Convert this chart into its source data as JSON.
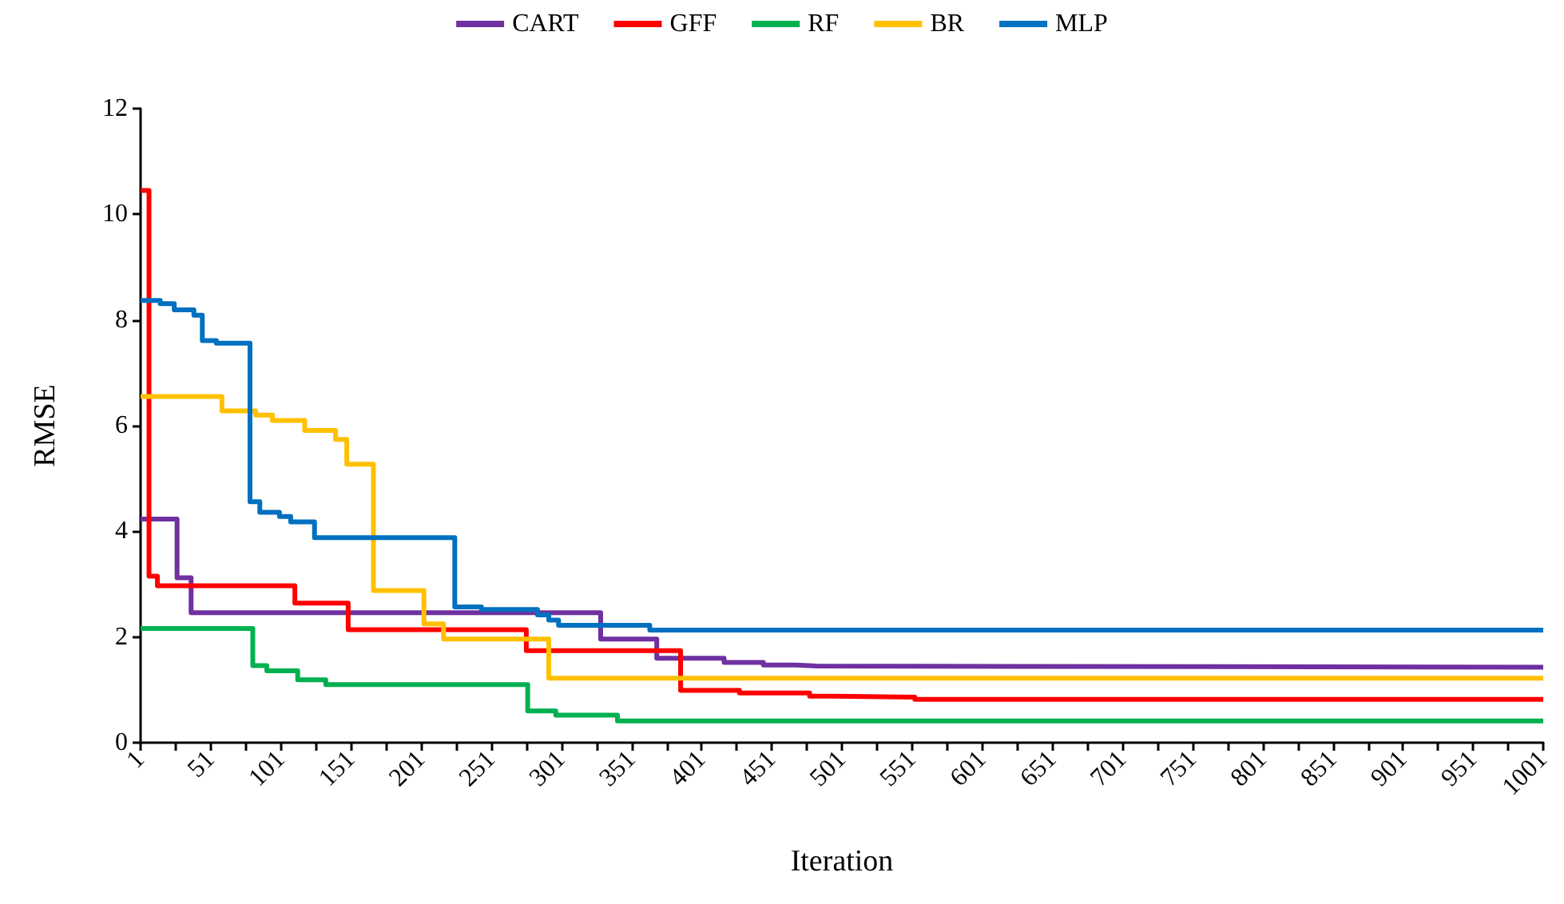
{
  "chart_data": {
    "type": "step",
    "xlabel": "Iteration",
    "ylabel": "RMSE",
    "xlim": [
      1,
      1001
    ],
    "ylim": [
      0,
      12
    ],
    "yticks": [
      0,
      2,
      4,
      6,
      8,
      10,
      12
    ],
    "xticks": [
      1,
      {
        "value": 26,
        "label": null
      },
      51,
      {
        "value": 76,
        "label": null
      },
      101,
      {
        "value": 126,
        "label": null
      },
      151,
      {
        "value": 176,
        "label": null
      },
      201,
      {
        "value": 226,
        "label": null
      },
      251,
      {
        "value": 276,
        "label": null
      },
      301,
      {
        "value": 326,
        "label": null
      },
      351,
      {
        "value": 376,
        "label": null
      },
      401,
      {
        "value": 426,
        "label": null
      },
      451,
      {
        "value": 476,
        "label": null
      },
      501,
      {
        "value": 526,
        "label": null
      },
      551,
      {
        "value": 576,
        "label": null
      },
      601,
      {
        "value": 626,
        "label": null
      },
      651,
      {
        "value": 676,
        "label": null
      },
      701,
      {
        "value": 726,
        "label": null
      },
      751,
      {
        "value": 776,
        "label": null
      },
      801,
      {
        "value": 826,
        "label": null
      },
      851,
      {
        "value": 876,
        "label": null
      },
      901,
      {
        "value": 926,
        "label": null
      },
      951,
      {
        "value": 976,
        "label": null
      },
      1001
    ],
    "grid": false,
    "legend": "top",
    "marker": "none",
    "line_style": "solid",
    "series": [
      {
        "name": "CART",
        "color": "#7030a0",
        "x": [
          1,
          27,
          37,
          329,
          369,
          417,
          445,
          468,
          483,
          1001
        ],
        "values": [
          4.23,
          3.12,
          2.46,
          1.96,
          1.6,
          1.52,
          1.47,
          1.45,
          1.43,
          1.43
        ]
      },
      {
        "name": "GFF",
        "color": "#ff0000",
        "x": [
          1,
          7,
          13,
          111,
          149,
          276,
          386,
          428,
          478,
          495,
          553,
          1001
        ],
        "values": [
          10.45,
          3.15,
          2.97,
          2.64,
          2.14,
          1.74,
          0.99,
          0.94,
          0.88,
          0.86,
          0.82,
          0.82
        ]
      },
      {
        "name": "RF",
        "color": "#00b050",
        "x": [
          1,
          81,
          91,
          113,
          133,
          277,
          297,
          341,
          1001
        ],
        "values": [
          2.16,
          1.46,
          1.36,
          1.19,
          1.1,
          0.6,
          0.52,
          0.41,
          0.41
        ]
      },
      {
        "name": "BR",
        "color": "#ffc000",
        "x": [
          1,
          59,
          83,
          95,
          118,
          140,
          148,
          167,
          203,
          217,
          292,
          1001
        ],
        "values": [
          6.55,
          6.28,
          6.2,
          6.1,
          5.91,
          5.74,
          5.27,
          2.88,
          2.25,
          1.96,
          1.22,
          1.22
        ]
      },
      {
        "name": "MLP",
        "color": "#0070c0",
        "x": [
          1,
          15,
          25,
          39,
          45,
          55,
          79,
          86,
          100,
          108,
          125,
          225,
          244,
          284,
          292,
          299,
          364,
          1001
        ],
        "values": [
          8.37,
          8.31,
          8.19,
          8.09,
          7.61,
          7.56,
          4.56,
          4.36,
          4.28,
          4.18,
          3.88,
          2.57,
          2.52,
          2.42,
          2.32,
          2.22,
          2.13,
          2.13
        ]
      }
    ]
  }
}
